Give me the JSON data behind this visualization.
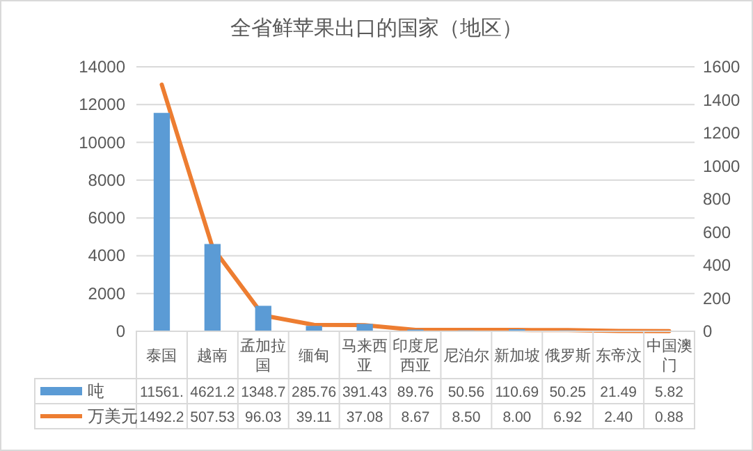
{
  "chart_data": {
    "type": "bar",
    "title": "全省鲜苹果出口的国家（地区）",
    "categories": [
      "泰国",
      "越南",
      "孟加拉国",
      "缅甸",
      "马来西亚",
      "印度尼西亚",
      "尼泊尔",
      "新加坡",
      "俄罗斯",
      "东帝汶",
      "中国澳门"
    ],
    "series": [
      {
        "name": "吨",
        "color": "#5b9bd5",
        "values": [
          11561,
          4621.2,
          1348.7,
          285.76,
          391.43,
          89.76,
          50.56,
          110.69,
          50.25,
          21.49,
          5.82
        ],
        "value_labels": [
          "11561.",
          "4621.2",
          "1348.7",
          "285.76",
          "391.43",
          "89.76",
          "50.56",
          "110.69",
          "50.25",
          "21.49",
          "5.82"
        ]
      },
      {
        "name": "万美元",
        "type": "line",
        "axis": "y2",
        "color": "#ed7d31",
        "values": [
          1492.2,
          507.53,
          96.03,
          39.11,
          37.08,
          8.67,
          8.5,
          8.0,
          6.92,
          2.4,
          0.88
        ],
        "value_labels": [
          "1492.2",
          "507.53",
          "96.03",
          "39.11",
          "37.08",
          "8.67",
          "8.50",
          "8.00",
          "6.92",
          "2.40",
          "0.88"
        ]
      }
    ],
    "ylim": [
      0,
      14000
    ],
    "yticks": [
      0,
      2000,
      4000,
      6000,
      8000,
      10000,
      12000,
      14000
    ],
    "y2lim": [
      0,
      1600
    ],
    "y2ticks": [
      0,
      200,
      400,
      600,
      800,
      1000,
      1200,
      1400,
      1600
    ],
    "grid": "y",
    "legend": "bottom"
  }
}
